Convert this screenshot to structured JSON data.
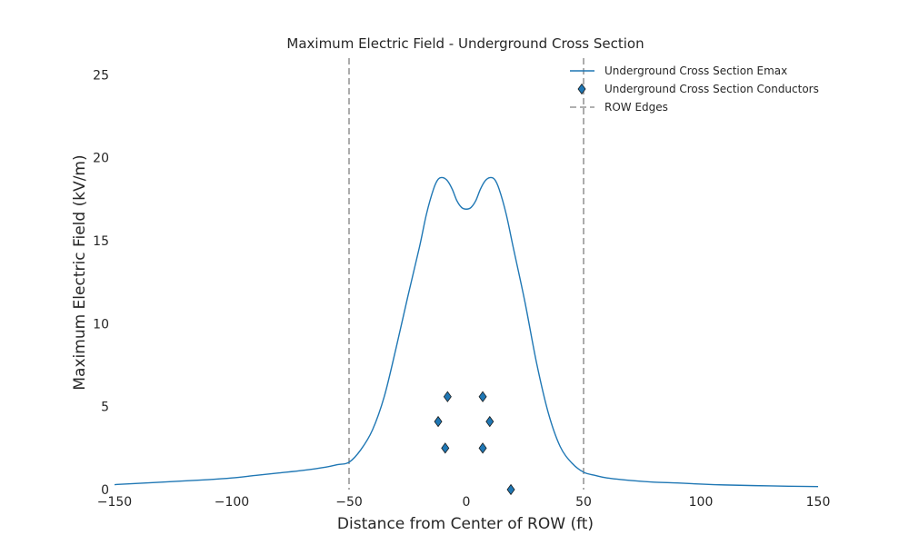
{
  "chart_data": {
    "type": "line",
    "title": "Maximum Electric Field - Underground Cross Section",
    "xlabel": "Distance from Center of ROW (ft)",
    "ylabel": "Maximum Electric Field (kV/m)",
    "xlim": [
      -150,
      150
    ],
    "ylim": [
      0,
      26
    ],
    "xticks": [
      -150,
      -100,
      -50,
      0,
      50,
      100,
      150
    ],
    "xtick_labels": [
      "−150",
      "−100",
      "−50",
      "0",
      "50",
      "100",
      "150"
    ],
    "yticks": [
      0,
      5,
      10,
      15,
      20,
      25
    ],
    "ytick_labels": [
      "0",
      "5",
      "10",
      "15",
      "20",
      "25"
    ],
    "grid": false,
    "legend_position": "top-right",
    "series": [
      {
        "name": "Underground Cross Section Emax",
        "kind": "line",
        "color": "#1f77b4",
        "x": [
          -150,
          -130,
          -110,
          -100,
          -90,
          -80,
          -70,
          -60,
          -55,
          -50,
          -45,
          -40,
          -35,
          -30,
          -25,
          -20,
          -17,
          -14,
          -12,
          -10,
          -8,
          -6,
          -4,
          -2,
          0,
          2,
          4,
          6,
          8,
          10,
          12,
          14,
          17,
          20,
          25,
          30,
          35,
          40,
          45,
          50,
          55,
          60,
          70,
          80,
          90,
          100,
          110,
          130,
          150
        ],
        "y": [
          0.3,
          0.45,
          0.6,
          0.7,
          0.85,
          1.0,
          1.15,
          1.35,
          1.5,
          1.65,
          2.4,
          3.6,
          5.6,
          8.5,
          11.6,
          14.6,
          16.6,
          18.1,
          18.7,
          18.8,
          18.6,
          18.1,
          17.4,
          17.0,
          16.9,
          17.0,
          17.4,
          18.1,
          18.6,
          18.8,
          18.7,
          18.1,
          16.6,
          14.6,
          11.3,
          7.6,
          4.6,
          2.6,
          1.6,
          1.05,
          0.85,
          0.7,
          0.55,
          0.45,
          0.4,
          0.33,
          0.28,
          0.22,
          0.18
        ]
      },
      {
        "name": "Underground Cross Section Conductors",
        "kind": "marker",
        "marker": "diamond",
        "color": "#1f77b4",
        "points": [
          {
            "x": -8,
            "y": 5.6
          },
          {
            "x": 7,
            "y": 5.6
          },
          {
            "x": -12,
            "y": 4.1
          },
          {
            "x": 10,
            "y": 4.1
          },
          {
            "x": -9,
            "y": 2.5
          },
          {
            "x": 7,
            "y": 2.5
          },
          {
            "x": 19,
            "y": 0.0
          }
        ]
      },
      {
        "name": "ROW Edges",
        "kind": "vline",
        "color": "#808080",
        "x": [
          -50,
          50
        ]
      }
    ]
  }
}
